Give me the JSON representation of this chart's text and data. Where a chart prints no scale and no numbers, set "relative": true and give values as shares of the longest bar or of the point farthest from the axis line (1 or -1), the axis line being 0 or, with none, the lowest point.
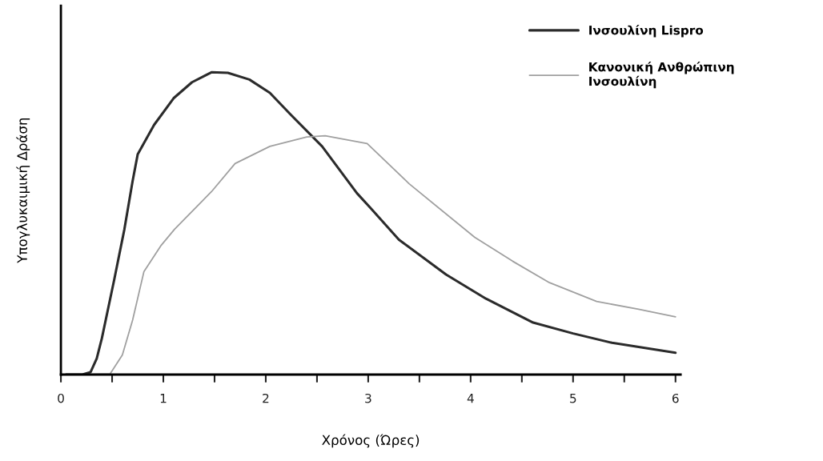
{
  "chart_data": {
    "type": "line",
    "relative": true,
    "xlabel": "Χρόνος (Ώρες)",
    "ylabel": "Υπογλυκαιμική Δράση",
    "xlim": [
      0,
      6.05
    ],
    "xticks": [
      0,
      {
        "value": 0.5,
        "label": null
      },
      1,
      {
        "value": 1.5,
        "label": null
      },
      2,
      {
        "value": 2.5,
        "label": null
      },
      3,
      {
        "value": 3.5,
        "label": null
      },
      4,
      {
        "value": 4.5,
        "label": null
      },
      5,
      {
        "value": 5.5,
        "label": null
      },
      6
    ],
    "tick_labels": "x",
    "grid": false,
    "legend": "top right",
    "marker": "none",
    "line_style": "solid",
    "series": [
      {
        "name": "Ινσουλίνη Lispro",
        "color": "#2b2b2b",
        "x": [
          0.05,
          0.21,
          0.29,
          0.35,
          0.4,
          0.52,
          0.62,
          0.7,
          0.75,
          0.91,
          1.1,
          1.28,
          1.47,
          1.63,
          1.84,
          2.04,
          2.24,
          2.55,
          2.89,
          3.02,
          3.3,
          3.76,
          4.15,
          4.61,
          5.0,
          5.38,
          6.0
        ],
        "values": [
          0,
          0,
          0.008,
          0.053,
          0.12,
          0.313,
          0.481,
          0.64,
          0.729,
          0.826,
          0.914,
          0.967,
          1.0,
          0.998,
          0.976,
          0.932,
          0.861,
          0.755,
          0.6,
          0.552,
          0.446,
          0.331,
          0.251,
          0.172,
          0.136,
          0.105,
          0.072
        ]
      },
      {
        "name": "Κανονική Ανθρώπινη Ινσουλίνη",
        "color": "#a0a0a0",
        "x": [
          0.05,
          0.21,
          0.48,
          0.6,
          0.7,
          0.81,
          0.98,
          1.11,
          1.47,
          1.7,
          2.04,
          2.4,
          2.58,
          2.99,
          3.4,
          4.04,
          4.41,
          4.77,
          5.23,
          5.64,
          6.0
        ],
        "values": [
          0,
          0,
          0.002,
          0.065,
          0.18,
          0.34,
          0.428,
          0.481,
          0.605,
          0.698,
          0.755,
          0.786,
          0.79,
          0.764,
          0.631,
          0.454,
          0.375,
          0.304,
          0.242,
          0.216,
          0.191
        ]
      }
    ]
  }
}
